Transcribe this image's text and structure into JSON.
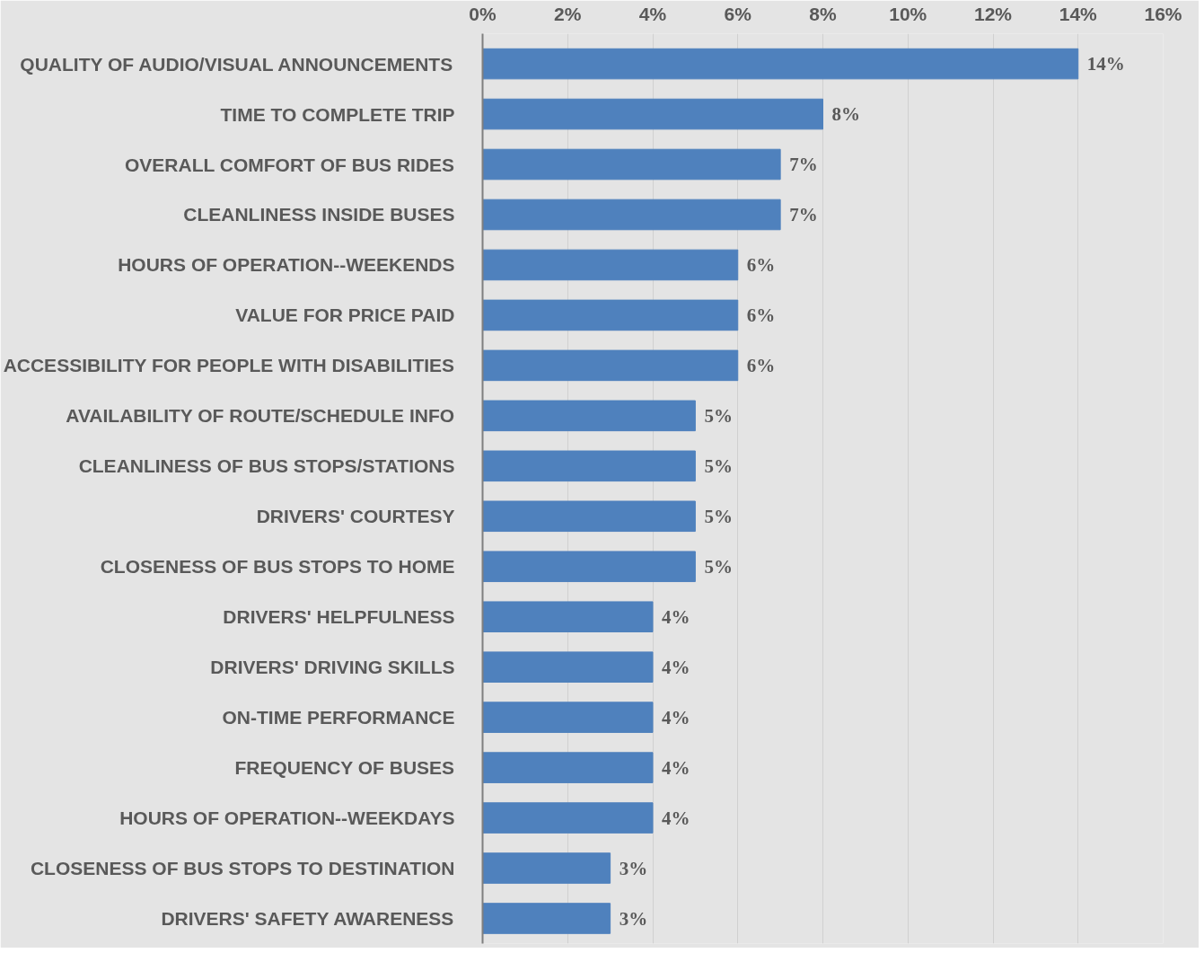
{
  "chart_data": {
    "type": "bar",
    "orientation": "horizontal",
    "categories": [
      "QUALITY OF AUDIO/VISUAL ANNOUNCEMENTS",
      "TIME TO COMPLETE TRIP",
      "OVERALL COMFORT OF BUS RIDES",
      "CLEANLINESS INSIDE BUSES",
      "HOURS OF OPERATION--WEEKENDS",
      "VALUE FOR PRICE PAID",
      "ACCESSIBILITY FOR PEOPLE WITH DISABILITIES",
      "AVAILABILITY OF ROUTE/SCHEDULE INFO",
      "CLEANLINESS OF BUS STOPS/STATIONS",
      "DRIVERS' COURTESY",
      "CLOSENESS OF BUS STOPS TO HOME",
      "DRIVERS' HELPFULNESS",
      "DRIVERS' DRIVING SKILLS",
      "ON-TIME PERFORMANCE",
      "FREQUENCY OF BUSES",
      "HOURS OF OPERATION--WEEKDAYS",
      "CLOSENESS OF BUS STOPS TO DESTINATION",
      "DRIVERS' SAFETY AWARENESS"
    ],
    "values": [
      14,
      8,
      7,
      7,
      6,
      6,
      6,
      5,
      5,
      5,
      5,
      4,
      4,
      4,
      4,
      4,
      3,
      3
    ],
    "value_labels": [
      "14%",
      "8%",
      "7%",
      "7%",
      "6%",
      "6%",
      "6%",
      "5%",
      "5%",
      "5%",
      "5%",
      "4%",
      "4%",
      "4%",
      "4%",
      "4%",
      "3%",
      "3%"
    ],
    "color": "#4f81bd",
    "xlim": [
      0,
      16
    ],
    "xticks": [
      {
        "value": 0,
        "label": "0%"
      },
      {
        "value": 2,
        "label": "2%"
      },
      {
        "value": 4,
        "label": "4%"
      },
      {
        "value": 6,
        "label": "6%"
      },
      {
        "value": 8,
        "label": "8%"
      },
      {
        "value": 10,
        "label": "10%"
      },
      {
        "value": 12,
        "label": "12%"
      },
      {
        "value": 14,
        "label": "14%"
      },
      {
        "value": 16,
        "label": "16%"
      }
    ],
    "grid": "x"
  }
}
